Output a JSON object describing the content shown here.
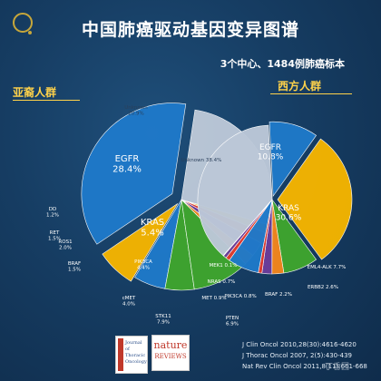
{
  "title": "中国肺癌驱动基因变异图谱",
  "subtitle": "3个中心、1484例肺癌标本",
  "group_left": "亚裔人群",
  "group_right": "西方人群",
  "references": [
    "J Clin Oncol 2010,28(30):4616-4620",
    "J Thorac Oncol 2007, 2(5):430-439",
    "Nat Rev Clin Oncol 2011,8(11):661-668"
  ],
  "logos": {
    "jto": "Journal of Thoracic Oncology",
    "nature_top": "nature",
    "nature_bottom": "REVIEWS"
  },
  "watermark": "丁香园",
  "colors": {
    "egfr": "#1f79c9",
    "unknown": "#bcc8d8",
    "kras": "#f4b400",
    "green": "#3fa52e",
    "purple": "#6a3d9a",
    "orange": "#f2861c",
    "red": "#e03a2f"
  },
  "chart_data": [
    {
      "type": "pie",
      "title": "亚裔人群",
      "slices": [
        {
          "label": "EGFR",
          "value": 28.4,
          "text": "EGFR\n28.4%",
          "color": "#1f79c9"
        },
        {
          "label": "KRAS",
          "value": 5.4,
          "text": "KRAS\n5.4%",
          "color": "#f4b400"
        },
        {
          "label": "PIK3CA",
          "value": 4.4,
          "text": "PIK3CA\n4.4%",
          "color": "#1f79c9"
        },
        {
          "label": "cMET",
          "value": 4.0,
          "text": "cMET\n4.0%",
          "color": "#3fa52e"
        },
        {
          "label": "STK11",
          "value": 7.9,
          "text": "STK11\n7.9%",
          "color": "#3fa52e"
        },
        {
          "label": "BRAF",
          "value": 1.5,
          "text": "BRAF\n1.5%",
          "color": "#f2861c"
        },
        {
          "label": "ROS1",
          "value": 2.0,
          "text": "ROS1\n2.0%",
          "color": "#6a3d9a"
        },
        {
          "label": "RET",
          "value": 1.5,
          "text": "RET\n1.5%",
          "color": "#e03a2f"
        },
        {
          "label": "DD",
          "value": 1.2,
          "text": "DD\n1.2%",
          "color": "#f4b400"
        },
        {
          "label": "Unknown",
          "value": 20.9,
          "text": "Unknown\n20.9%",
          "color": "#bcc8d8"
        }
      ]
    },
    {
      "type": "pie",
      "title": "西方人群",
      "slices": [
        {
          "label": "EGFR",
          "value": 10.8,
          "text": "EGFR\n10.8%",
          "color": "#1f79c9"
        },
        {
          "label": "KRAS",
          "value": 30.6,
          "text": "KRAS\n30.6%",
          "color": "#f4b400"
        },
        {
          "label": "EML4-ALK",
          "value": 7.7,
          "text": "EML4-ALK 7.7%",
          "color": "#3fa52e"
        },
        {
          "label": "ERBB2",
          "value": 2.6,
          "text": "ERBB2 2.6%",
          "color": "#f2861c"
        },
        {
          "label": "BRAF",
          "value": 2.2,
          "text": "BRAF 2.2%",
          "color": "#6a3d9a"
        },
        {
          "label": "PIK3CA",
          "value": 0.8,
          "text": "PIK3CA 0.8%",
          "color": "#e03a2f"
        },
        {
          "label": "PTEN",
          "value": 6.9,
          "text": "PTEN\n6.9%",
          "color": "#1f79c9"
        },
        {
          "label": "MET",
          "value": 0.9,
          "text": "MET 0.9%",
          "color": "#e03a2f"
        },
        {
          "label": "NRAS",
          "value": 0.7,
          "text": "NRAS 0.7%",
          "color": "#6a3d9a"
        },
        {
          "label": "MEK1",
          "value": 0.1,
          "text": "MEK1 0.1%",
          "color": "#3fa52e"
        },
        {
          "label": "Unknown",
          "value": 38.4,
          "text": "Unknown 38.4%",
          "color": "#bcc8d8"
        }
      ]
    }
  ]
}
